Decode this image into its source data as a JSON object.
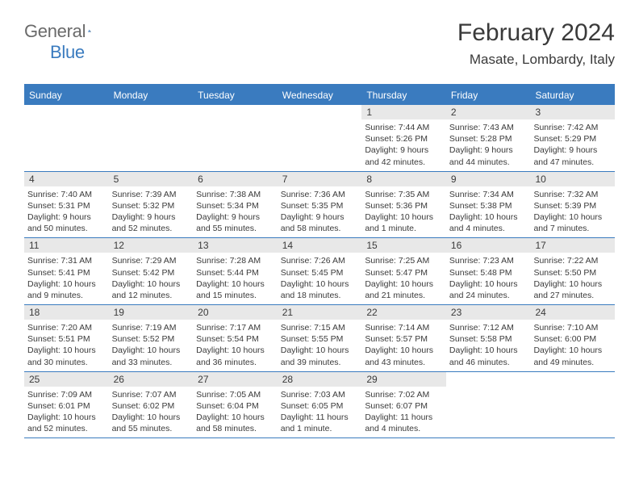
{
  "brand": {
    "word1": "General",
    "word2": "Blue"
  },
  "title": "February 2024",
  "subtitle": "Masate, Lombardy, Italy",
  "colors": {
    "accent": "#3a7bbf",
    "band": "#e8e8e8",
    "text": "#3a3a3a",
    "logo_gray": "#6a6a6a",
    "background": "#ffffff"
  },
  "day_names": [
    "Sunday",
    "Monday",
    "Tuesday",
    "Wednesday",
    "Thursday",
    "Friday",
    "Saturday"
  ],
  "weeks": [
    [
      {
        "blank": true
      },
      {
        "blank": true
      },
      {
        "blank": true
      },
      {
        "blank": true
      },
      {
        "n": "1",
        "sr": "7:44 AM",
        "ss": "5:26 PM",
        "dl": "9 hours and 42 minutes."
      },
      {
        "n": "2",
        "sr": "7:43 AM",
        "ss": "5:28 PM",
        "dl": "9 hours and 44 minutes."
      },
      {
        "n": "3",
        "sr": "7:42 AM",
        "ss": "5:29 PM",
        "dl": "9 hours and 47 minutes."
      }
    ],
    [
      {
        "n": "4",
        "sr": "7:40 AM",
        "ss": "5:31 PM",
        "dl": "9 hours and 50 minutes."
      },
      {
        "n": "5",
        "sr": "7:39 AM",
        "ss": "5:32 PM",
        "dl": "9 hours and 52 minutes."
      },
      {
        "n": "6",
        "sr": "7:38 AM",
        "ss": "5:34 PM",
        "dl": "9 hours and 55 minutes."
      },
      {
        "n": "7",
        "sr": "7:36 AM",
        "ss": "5:35 PM",
        "dl": "9 hours and 58 minutes."
      },
      {
        "n": "8",
        "sr": "7:35 AM",
        "ss": "5:36 PM",
        "dl": "10 hours and 1 minute."
      },
      {
        "n": "9",
        "sr": "7:34 AM",
        "ss": "5:38 PM",
        "dl": "10 hours and 4 minutes."
      },
      {
        "n": "10",
        "sr": "7:32 AM",
        "ss": "5:39 PM",
        "dl": "10 hours and 7 minutes."
      }
    ],
    [
      {
        "n": "11",
        "sr": "7:31 AM",
        "ss": "5:41 PM",
        "dl": "10 hours and 9 minutes."
      },
      {
        "n": "12",
        "sr": "7:29 AM",
        "ss": "5:42 PM",
        "dl": "10 hours and 12 minutes."
      },
      {
        "n": "13",
        "sr": "7:28 AM",
        "ss": "5:44 PM",
        "dl": "10 hours and 15 minutes."
      },
      {
        "n": "14",
        "sr": "7:26 AM",
        "ss": "5:45 PM",
        "dl": "10 hours and 18 minutes."
      },
      {
        "n": "15",
        "sr": "7:25 AM",
        "ss": "5:47 PM",
        "dl": "10 hours and 21 minutes."
      },
      {
        "n": "16",
        "sr": "7:23 AM",
        "ss": "5:48 PM",
        "dl": "10 hours and 24 minutes."
      },
      {
        "n": "17",
        "sr": "7:22 AM",
        "ss": "5:50 PM",
        "dl": "10 hours and 27 minutes."
      }
    ],
    [
      {
        "n": "18",
        "sr": "7:20 AM",
        "ss": "5:51 PM",
        "dl": "10 hours and 30 minutes."
      },
      {
        "n": "19",
        "sr": "7:19 AM",
        "ss": "5:52 PM",
        "dl": "10 hours and 33 minutes."
      },
      {
        "n": "20",
        "sr": "7:17 AM",
        "ss": "5:54 PM",
        "dl": "10 hours and 36 minutes."
      },
      {
        "n": "21",
        "sr": "7:15 AM",
        "ss": "5:55 PM",
        "dl": "10 hours and 39 minutes."
      },
      {
        "n": "22",
        "sr": "7:14 AM",
        "ss": "5:57 PM",
        "dl": "10 hours and 43 minutes."
      },
      {
        "n": "23",
        "sr": "7:12 AM",
        "ss": "5:58 PM",
        "dl": "10 hours and 46 minutes."
      },
      {
        "n": "24",
        "sr": "7:10 AM",
        "ss": "6:00 PM",
        "dl": "10 hours and 49 minutes."
      }
    ],
    [
      {
        "n": "25",
        "sr": "7:09 AM",
        "ss": "6:01 PM",
        "dl": "10 hours and 52 minutes."
      },
      {
        "n": "26",
        "sr": "7:07 AM",
        "ss": "6:02 PM",
        "dl": "10 hours and 55 minutes."
      },
      {
        "n": "27",
        "sr": "7:05 AM",
        "ss": "6:04 PM",
        "dl": "10 hours and 58 minutes."
      },
      {
        "n": "28",
        "sr": "7:03 AM",
        "ss": "6:05 PM",
        "dl": "11 hours and 1 minute."
      },
      {
        "n": "29",
        "sr": "7:02 AM",
        "ss": "6:07 PM",
        "dl": "11 hours and 4 minutes."
      },
      {
        "blank": true
      },
      {
        "blank": true
      }
    ]
  ],
  "labels": {
    "sunrise": "Sunrise: ",
    "sunset": "Sunset: ",
    "daylight": "Daylight: "
  }
}
